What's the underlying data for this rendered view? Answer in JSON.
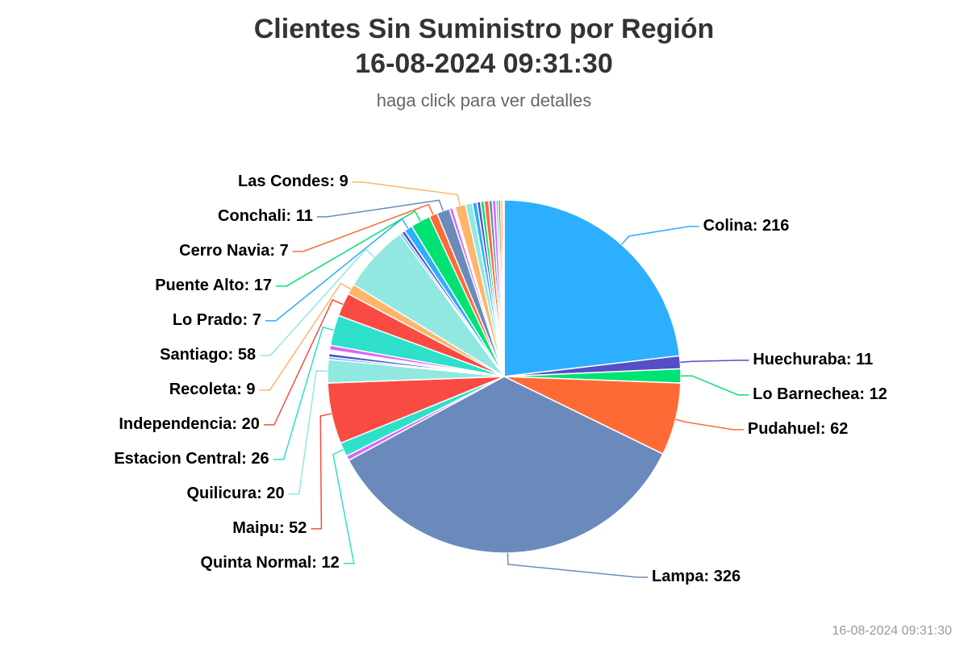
{
  "chart_data": {
    "type": "pie",
    "title": [
      "Clientes Sin Suministro por Región",
      "16-08-2024 09:31:30"
    ],
    "subtitle": "haga click para ver detalles",
    "credits": "16-08-2024 09:31:30",
    "values": [
      216,
      11,
      12,
      62,
      326,
      4,
      12,
      52,
      20,
      2,
      3,
      1,
      1,
      1,
      4,
      26,
      20,
      9,
      58,
      2,
      3,
      7,
      17,
      7,
      11,
      3,
      1,
      1,
      9,
      6,
      4,
      3,
      3,
      4,
      3,
      3,
      2,
      2,
      2,
      1
    ],
    "value_labels": [
      "Colina: 216",
      "Huechuraba: 11",
      "Lo Barnechea: 12",
      "Pudahuel: 62",
      "Lampa: 326",
      null,
      "Quinta Normal: 12",
      "Maipu: 52",
      "Quilicura: 20",
      null,
      null,
      null,
      null,
      null,
      null,
      "Estacion Central: 26",
      "Independencia: 20",
      "Recoleta: 9",
      "Santiago: 58",
      null,
      null,
      "Lo Prado: 7",
      "Puente Alto: 17",
      "Cerro Navia: 7",
      "Conchali: 11",
      null,
      null,
      null,
      "Las Condes: 9",
      null,
      null,
      null,
      null,
      null,
      null,
      null,
      null,
      null,
      null,
      null
    ],
    "colors": [
      "#2caffe",
      "#544fc5",
      "#00e272",
      "#fe6a35",
      "#6b8abc",
      "#d568fb",
      "#2ee0ca",
      "#fa4b42",
      "#91e8e1",
      "#2caffe",
      "#544fc5",
      "#00e272",
      "#fe6a35",
      "#6b8abc",
      "#d568fb",
      "#2ee0ca",
      "#fa4b42",
      "#feb56a",
      "#91e8e1",
      "#2caffe",
      "#544fc5",
      "#2caffe",
      "#00e272",
      "#fe6a35",
      "#6b8abc",
      "#d568fb",
      "#2ee0ca",
      "#fa4b42",
      "#feb56a",
      "#91e8e1",
      "#2caffe",
      "#544fc5",
      "#00e272",
      "#fe6a35",
      "#6b8abc",
      "#d568fb",
      "#2ee0ca",
      "#fa4b42",
      "#feb56a",
      "#91e8e1"
    ]
  }
}
